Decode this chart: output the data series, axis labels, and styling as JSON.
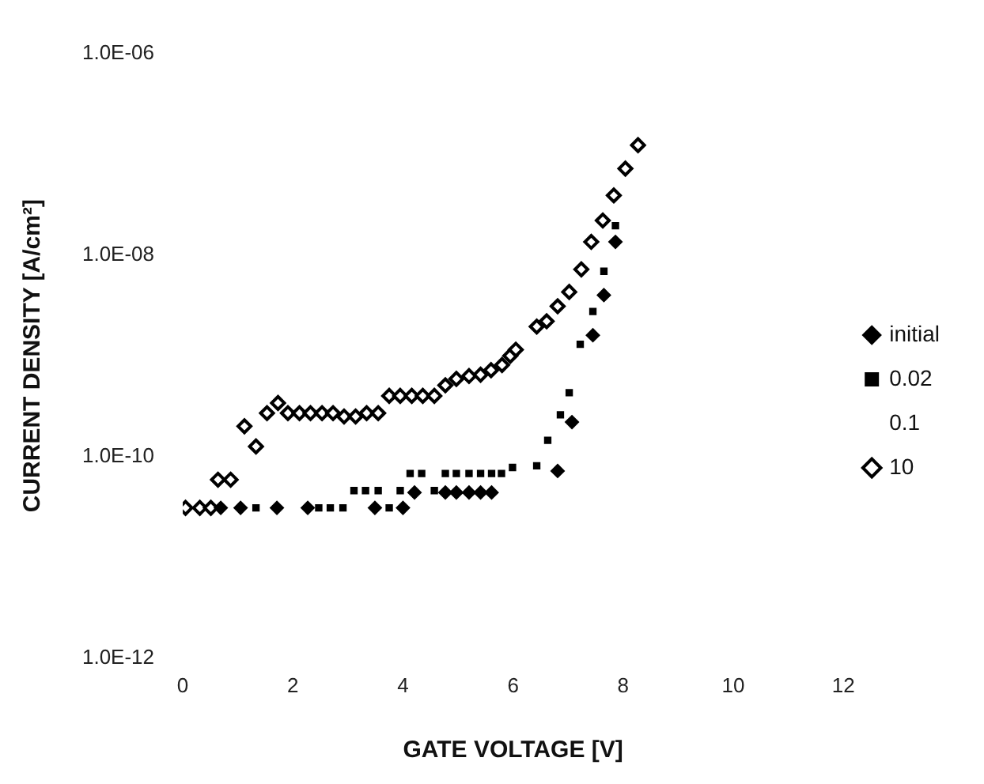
{
  "chart_data": {
    "type": "scatter",
    "xlabel": "GATE VOLTAGE [V]",
    "ylabel": "CURRENT DENSITY [A/cm²]",
    "xlim": [
      0,
      12
    ],
    "xticks": [
      0,
      2,
      4,
      6,
      8,
      10,
      12
    ],
    "ylim": [
      1e-12,
      1e-06
    ],
    "yticks": [
      {
        "value": 1e-12,
        "label": "1.0E-12"
      },
      {
        "value": 1e-10,
        "label": "1.0E-10"
      },
      {
        "value": 1e-08,
        "label": "1.0E-08"
      },
      {
        "value": 1e-06,
        "label": "1.0E-06"
      }
    ],
    "log": "y",
    "grid": false,
    "legend": "right",
    "series": [
      {
        "name": "initial",
        "color": "#000000",
        "marker": "diamond",
        "x": [
          0.69,
          1.05,
          1.71,
          2.27,
          3.49,
          4.0,
          4.21,
          4.77,
          4.97,
          5.2,
          5.41,
          5.61,
          6.81,
          7.07,
          7.45,
          7.65,
          7.86
        ],
        "values": [
          3.1e-11,
          3.1e-11,
          3.1e-11,
          3.1e-11,
          3.1e-11,
          3.1e-11,
          4.4e-11,
          4.4e-11,
          4.4e-11,
          4.4e-11,
          4.4e-11,
          4.4e-11,
          7.2e-11,
          2.2e-10,
          1.6e-09,
          4e-09,
          1.35e-08
        ]
      },
      {
        "name": "0.02",
        "color": "#000000",
        "marker": "square",
        "x": [
          1.33,
          2.47,
          2.68,
          2.91,
          3.75,
          3.11,
          3.32,
          3.55,
          3.95,
          4.57,
          4.13,
          4.34,
          4.77,
          4.97,
          5.2,
          5.41,
          5.61,
          5.79,
          5.99,
          6.43,
          6.63,
          6.86,
          7.02,
          7.22,
          7.45,
          7.65,
          7.86
        ],
        "values": [
          3.1e-11,
          3.1e-11,
          3.1e-11,
          3.1e-11,
          3.1e-11,
          4.6e-11,
          4.6e-11,
          4.6e-11,
          4.6e-11,
          4.6e-11,
          6.8e-11,
          6.8e-11,
          6.8e-11,
          6.8e-11,
          6.8e-11,
          6.8e-11,
          6.8e-11,
          6.8e-11,
          7.8e-11,
          8.1e-11,
          1.45e-10,
          2.6e-10,
          4.3e-10,
          1.3e-09,
          2.75e-09,
          6.9e-09,
          1.95e-08
        ]
      },
      {
        "name": "0.1",
        "color": "#000000",
        "marker": "none"
      },
      {
        "name": "10",
        "color": "#000000",
        "marker": "diamond",
        "x": [
          0.05,
          0.31,
          0.51,
          0.64,
          0.87,
          1.12,
          1.33,
          1.53,
          1.73,
          1.91,
          2.12,
          2.32,
          2.53,
          2.73,
          2.93,
          3.14,
          3.34,
          3.55,
          3.75,
          3.95,
          4.16,
          4.36,
          4.57,
          4.77,
          4.97,
          5.2,
          5.41,
          5.6,
          5.8,
          5.95,
          6.05,
          6.43,
          6.61,
          6.81,
          7.02,
          7.24,
          7.42,
          7.63,
          7.83,
          8.04,
          8.27
        ],
        "values": [
          3.1e-11,
          3.1e-11,
          3.1e-11,
          5.9e-11,
          5.9e-11,
          2e-10,
          1.26e-10,
          2.7e-10,
          3.4e-10,
          2.7e-10,
          2.7e-10,
          2.7e-10,
          2.7e-10,
          2.7e-10,
          2.5e-10,
          2.5e-10,
          2.7e-10,
          2.7e-10,
          4e-10,
          4e-10,
          4e-10,
          4e-10,
          4e-10,
          5.1e-10,
          5.9e-10,
          6.3e-10,
          6.5e-10,
          7.2e-10,
          8.1e-10,
          1e-09,
          1.15e-09,
          1.95e-09,
          2.2e-09,
          3.1e-09,
          4.3e-09,
          7.2e-09,
          1.35e-08,
          2.2e-08,
          3.9e-08,
          7.2e-08,
          1.23e-07
        ]
      }
    ]
  }
}
